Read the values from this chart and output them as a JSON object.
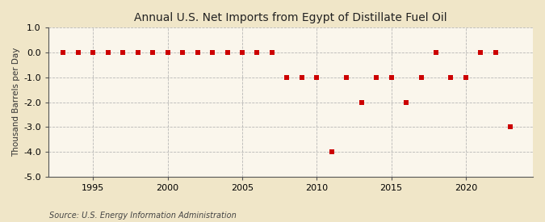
{
  "title": "Annual U.S. Net Imports from Egypt of Distillate Fuel Oil",
  "ylabel": "Thousand Barrels per Day",
  "source": "Source: U.S. Energy Information Administration",
  "figure_bg_color": "#f0e6c8",
  "plot_bg_color": "#faf6ec",
  "marker_color": "#cc0000",
  "grid_color": "#b0b0b0",
  "spine_color": "#555555",
  "ylim": [
    -5.0,
    1.0
  ],
  "yticks": [
    1.0,
    0.0,
    -1.0,
    -2.0,
    -3.0,
    -4.0,
    -5.0
  ],
  "xlim": [
    1992.0,
    2024.5
  ],
  "xticks": [
    1995,
    2000,
    2005,
    2010,
    2015,
    2020
  ],
  "years": [
    1993,
    1994,
    1995,
    1996,
    1997,
    1998,
    1999,
    2000,
    2001,
    2002,
    2003,
    2004,
    2005,
    2006,
    2007,
    2008,
    2009,
    2010,
    2011,
    2012,
    2013,
    2014,
    2015,
    2016,
    2017,
    2018,
    2019,
    2020,
    2021,
    2022,
    2023
  ],
  "values": [
    0,
    0,
    0,
    0,
    0,
    0,
    0,
    0,
    0,
    0,
    0,
    0,
    0,
    0,
    0,
    -1,
    -1,
    -1,
    -4,
    -1,
    -2,
    -1,
    -1,
    -2,
    -1,
    0,
    -1,
    -1,
    0,
    0,
    -3
  ],
  "title_fontsize": 10,
  "tick_fontsize": 8,
  "ylabel_fontsize": 7.5,
  "source_fontsize": 7,
  "marker_size": 4
}
